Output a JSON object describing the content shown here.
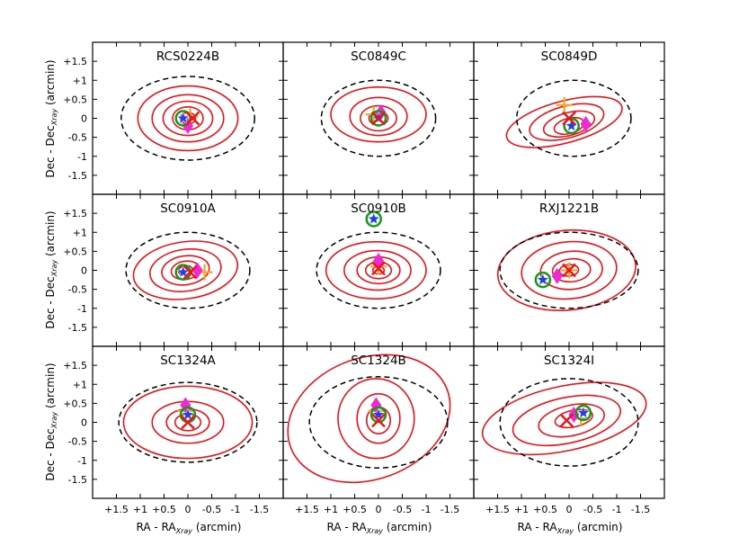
{
  "figure": {
    "x_axis_label": "RA - RA",
    "x_axis_sub": "Xray",
    "x_axis_unit": " (arcmin)",
    "y_axis_label": "Dec - Dec",
    "y_axis_sub": "Xray",
    "y_axis_unit": " (arcmin)"
  },
  "colors": {
    "contour": "#e8141b",
    "dashed_circle": "#000000",
    "cross": "#e8141b",
    "plus": "#f5a623",
    "diamond": "#ee2bd2",
    "star": "#2342e6",
    "ring": "#17961b"
  },
  "chart_data": {
    "type": "contour-grid",
    "grid": {
      "rows": 3,
      "cols": 3
    },
    "xlim": [
      2.0,
      -2.0
    ],
    "ylim": [
      -2.0,
      2.0
    ],
    "x_ticks": [
      1.5,
      1,
      0.5,
      0,
      -0.5,
      -1,
      -1.5
    ],
    "y_ticks": [
      1.5,
      1,
      0.5,
      0,
      -0.5,
      -1,
      -1.5
    ],
    "x_tick_labels": [
      "+1.5",
      "+1",
      "+0.5",
      "0",
      "-0.5",
      "-1",
      "-1.5"
    ],
    "y_tick_labels": [
      "+1.5",
      "+1",
      "+0.5",
      "0",
      "-0.5",
      "-1",
      "-1.5"
    ],
    "panels": [
      {
        "name": "RCS0224B",
        "dashed": {
          "x": 0.0,
          "y": 0.0,
          "rx": 1.4,
          "ry": 1.1
        },
        "contours": [
          {
            "x": 0.0,
            "y": 0.0,
            "rx": 1.05,
            "ry": 0.85,
            "rot": 0
          },
          {
            "x": 0.0,
            "y": 0.0,
            "rx": 0.75,
            "ry": 0.62,
            "rot": 0
          },
          {
            "x": 0.0,
            "y": 0.0,
            "rx": 0.52,
            "ry": 0.45,
            "rot": 0
          },
          {
            "x": 0.0,
            "y": 0.0,
            "rx": 0.32,
            "ry": 0.3,
            "rot": 0
          },
          {
            "x": 0.0,
            "y": 0.0,
            "rx": 0.16,
            "ry": 0.15,
            "rot": 0
          }
        ],
        "markers": {
          "ring": [
            0.1,
            0.0
          ],
          "star": [
            0.1,
            0.0
          ],
          "cross": [
            -0.1,
            0.0
          ],
          "plus": [
            -0.05,
            0.05
          ],
          "diamond": [
            0.0,
            -0.2
          ]
        }
      },
      {
        "name": "SC0849C",
        "dashed": {
          "x": 0.0,
          "y": 0.0,
          "rx": 1.2,
          "ry": 1.0
        },
        "contours": [
          {
            "x": 0.0,
            "y": 0.1,
            "rx": 1.0,
            "ry": 0.72,
            "rot": 0
          },
          {
            "x": 0.0,
            "y": 0.05,
            "rx": 0.6,
            "ry": 0.5,
            "rot": 0
          },
          {
            "x": 0.0,
            "y": 0.0,
            "rx": 0.38,
            "ry": 0.33,
            "rot": 0
          },
          {
            "x": 0.0,
            "y": 0.0,
            "rx": 0.2,
            "ry": 0.18,
            "rot": 0
          }
        ],
        "markers": {
          "ring": [
            0.0,
            0.0
          ],
          "star": [
            0.0,
            0.0
          ],
          "cross": [
            0.0,
            0.0
          ],
          "plus": [
            0.1,
            0.1
          ],
          "diamond": [
            -0.05,
            0.15
          ]
        }
      },
      {
        "name": "SC0849D",
        "dashed": {
          "x": -0.1,
          "y": 0.0,
          "rx": 1.2,
          "ry": 1.0
        },
        "contours": [
          {
            "x": 0.1,
            "y": -0.1,
            "rx": 1.25,
            "ry": 0.55,
            "rot": -15
          },
          {
            "x": 0.05,
            "y": -0.1,
            "rx": 0.8,
            "ry": 0.42,
            "rot": -15
          },
          {
            "x": 0.0,
            "y": -0.15,
            "rx": 0.55,
            "ry": 0.3,
            "rot": -15
          },
          {
            "x": 0.0,
            "y": -0.2,
            "rx": 0.32,
            "ry": 0.2,
            "rot": -15
          }
        ],
        "markers": {
          "ring": [
            -0.05,
            -0.2
          ],
          "star": [
            -0.05,
            -0.2
          ],
          "cross": [
            0.0,
            0.0
          ],
          "plus": [
            0.1,
            0.35
          ],
          "diamond": [
            -0.35,
            -0.15
          ]
        }
      },
      {
        "name": "SC0910A",
        "dashed": {
          "x": 0.0,
          "y": 0.0,
          "rx": 1.3,
          "ry": 1.0
        },
        "contours": [
          {
            "x": 0.05,
            "y": 0.0,
            "rx": 1.1,
            "ry": 0.75,
            "rot": -8
          },
          {
            "x": 0.05,
            "y": 0.0,
            "rx": 0.75,
            "ry": 0.55,
            "rot": -8
          },
          {
            "x": 0.05,
            "y": 0.0,
            "rx": 0.5,
            "ry": 0.38,
            "rot": -8
          },
          {
            "x": 0.05,
            "y": 0.0,
            "rx": 0.3,
            "ry": 0.24,
            "rot": -8
          },
          {
            "x": 0.05,
            "y": 0.0,
            "rx": 0.15,
            "ry": 0.12,
            "rot": -8
          }
        ],
        "markers": {
          "ring": [
            0.1,
            -0.05
          ],
          "star": [
            0.1,
            -0.05
          ],
          "cross": [
            -0.05,
            -0.05
          ],
          "plus": [
            -0.35,
            -0.05
          ],
          "diamond": [
            -0.2,
            0.0
          ]
        }
      },
      {
        "name": "SC0910B",
        "dashed": {
          "x": 0.0,
          "y": 0.0,
          "rx": 1.3,
          "ry": 1.0
        },
        "contours": [
          {
            "x": 0.05,
            "y": 0.0,
            "rx": 1.05,
            "ry": 0.75,
            "rot": 0
          },
          {
            "x": 0.02,
            "y": 0.0,
            "rx": 0.7,
            "ry": 0.52,
            "rot": 0
          },
          {
            "x": 0.0,
            "y": 0.0,
            "rx": 0.45,
            "ry": 0.35,
            "rot": 0
          },
          {
            "x": 0.0,
            "y": 0.0,
            "rx": 0.27,
            "ry": 0.22,
            "rot": 0
          },
          {
            "x": 0.0,
            "y": 0.0,
            "rx": 0.12,
            "ry": 0.1,
            "rot": 0
          }
        ],
        "markers": {
          "ring": [
            0.1,
            1.35
          ],
          "star": [
            0.1,
            1.35
          ],
          "cross": [
            0.0,
            0.05
          ],
          "plus": [
            0.0,
            0.1
          ],
          "diamond": [
            0.0,
            0.25
          ]
        }
      },
      {
        "name": "RXJ1221B",
        "dashed": {
          "x": 0.0,
          "y": 0.0,
          "rx": 1.45,
          "ry": 1.0
        },
        "contours": [
          {
            "x": 0.05,
            "y": 0.0,
            "rx": 1.45,
            "ry": 1.05,
            "rot": -5
          },
          {
            "x": 0.0,
            "y": 0.0,
            "rx": 1.0,
            "ry": 0.75,
            "rot": -5
          },
          {
            "x": -0.05,
            "y": 0.0,
            "rx": 0.65,
            "ry": 0.5,
            "rot": -5
          },
          {
            "x": -0.05,
            "y": 0.0,
            "rx": 0.4,
            "ry": 0.3,
            "rot": -5
          },
          {
            "x": 0.0,
            "y": 0.0,
            "rx": 0.2,
            "ry": 0.15,
            "rot": -5
          }
        ],
        "markers": {
          "ring": [
            0.55,
            -0.25
          ],
          "star": [
            0.55,
            -0.25
          ],
          "cross": [
            0.0,
            0.0
          ],
          "plus": [
            0.0,
            0.0
          ],
          "diamond": [
            0.25,
            -0.15
          ]
        }
      },
      {
        "name": "SC1324A",
        "dashed": {
          "x": 0.0,
          "y": 0.0,
          "rx": 1.45,
          "ry": 1.05
        },
        "contours": [
          {
            "x": 0.0,
            "y": 0.0,
            "rx": 1.35,
            "ry": 0.95,
            "rot": 0
          },
          {
            "x": 0.0,
            "y": 0.0,
            "rx": 0.75,
            "ry": 0.55,
            "rot": 0
          },
          {
            "x": 0.0,
            "y": 0.0,
            "rx": 0.45,
            "ry": 0.35,
            "rot": 0
          },
          {
            "x": 0.0,
            "y": 0.0,
            "rx": 0.27,
            "ry": 0.22,
            "rot": 0
          }
        ],
        "markers": {
          "ring": [
            0.0,
            0.2
          ],
          "star": [
            0.0,
            0.2
          ],
          "cross": [
            0.0,
            0.0
          ],
          "plus": [
            0.05,
            0.3
          ],
          "diamond": [
            0.05,
            0.45
          ]
        }
      },
      {
        "name": "SC1324B",
        "dashed": {
          "x": 0.0,
          "y": 0.0,
          "rx": 1.45,
          "ry": 1.2
        },
        "contours": [
          {
            "x": 0.2,
            "y": 0.1,
            "rx": 1.75,
            "ry": 1.6,
            "rot": -20
          },
          {
            "x": 0.05,
            "y": 0.1,
            "rx": 0.8,
            "ry": 1.05,
            "rot": 0
          },
          {
            "x": 0.0,
            "y": 0.1,
            "rx": 0.45,
            "ry": 0.65,
            "rot": 0
          },
          {
            "x": 0.0,
            "y": 0.05,
            "rx": 0.25,
            "ry": 0.35,
            "rot": 0
          }
        ],
        "markers": {
          "ring": [
            0.0,
            0.2
          ],
          "star": [
            0.0,
            0.2
          ],
          "cross": [
            0.0,
            0.05
          ],
          "plus": [
            0.05,
            0.3
          ],
          "diamond": [
            0.05,
            0.45
          ]
        }
      },
      {
        "name": "SC1324I",
        "dashed": {
          "x": 0.0,
          "y": 0.0,
          "rx": 1.45,
          "ry": 1.15
        },
        "contours": [
          {
            "x": 0.1,
            "y": 0.1,
            "rx": 1.75,
            "ry": 0.85,
            "rot": -12
          },
          {
            "x": 0.05,
            "y": 0.05,
            "rx": 1.15,
            "ry": 0.6,
            "rot": -12
          },
          {
            "x": -0.05,
            "y": 0.05,
            "rx": 0.7,
            "ry": 0.4,
            "rot": -12
          },
          {
            "x": -0.1,
            "y": 0.1,
            "rx": 0.4,
            "ry": 0.22,
            "rot": -12
          }
        ],
        "markers": {
          "ring": [
            -0.3,
            0.25
          ],
          "star": [
            -0.3,
            0.25
          ],
          "cross": [
            0.05,
            0.05
          ],
          "plus": [
            -0.25,
            0.1
          ],
          "diamond": [
            -0.1,
            0.2
          ]
        }
      }
    ]
  }
}
